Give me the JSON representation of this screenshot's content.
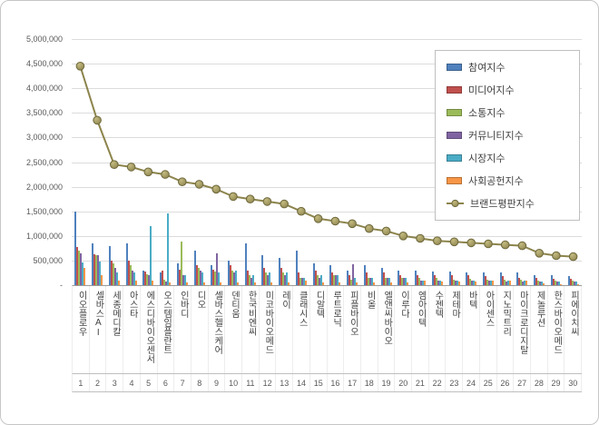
{
  "chart_data": {
    "type": "bar",
    "title": "",
    "xlabel": "",
    "ylabel": "",
    "ylim": [
      0,
      5000000
    ],
    "ytick_step": 500000,
    "ytick_labels": [
      "5,000,000",
      "4,500,000",
      "4,000,000",
      "3,500,000",
      "3,000,000",
      "2,500,000",
      "2,000,000",
      "1,500,000",
      "1,000,000",
      "500,000",
      "-"
    ],
    "zero_tick_label": "-",
    "grid": true,
    "legend_position": "top-right",
    "categories": [
      "이오플로우",
      "셀바스AI",
      "세종메디칼",
      "아스타",
      "에스디바이오센서",
      "오스템임플란트",
      "인바디",
      "디오",
      "셀바스헬스케어",
      "덴티움",
      "한국비엔씨",
      "미코바이오메드",
      "레이",
      "클래시스",
      "디알텍",
      "루트로닉",
      "피플바이오",
      "비올",
      "엘앤씨바이오",
      "이루다",
      "엠아이텍",
      "수젠텍",
      "제테마",
      "바텍",
      "아이센스",
      "지노믹트리",
      "마이크로디지탈",
      "제놀루션",
      "한스바이오메드",
      "피에이치씨"
    ],
    "ranks": [
      "1",
      "2",
      "3",
      "4",
      "5",
      "6",
      "7",
      "8",
      "9",
      "10",
      "11",
      "12",
      "13",
      "14",
      "15",
      "16",
      "17",
      "18",
      "19",
      "20",
      "21",
      "22",
      "23",
      "24",
      "25",
      "26",
      "27",
      "28",
      "29",
      "30"
    ],
    "bar_series": [
      {
        "name": "참여지수",
        "color": "#4F81BD",
        "values": [
          1500000,
          850000,
          800000,
          850000,
          300000,
          250000,
          450000,
          700000,
          400000,
          500000,
          850000,
          600000,
          550000,
          700000,
          450000,
          400000,
          300000,
          400000,
          350000,
          300000,
          300000,
          280000,
          280000,
          250000,
          250000,
          250000,
          250000,
          200000,
          200000,
          180000
        ]
      },
      {
        "name": "미디어지수",
        "color": "#C0504D",
        "values": [
          780000,
          620000,
          500000,
          500000,
          280000,
          300000,
          320000,
          400000,
          320000,
          400000,
          300000,
          350000,
          350000,
          250000,
          300000,
          250000,
          200000,
          250000,
          250000,
          200000,
          200000,
          200000,
          200000,
          200000,
          180000,
          180000,
          150000,
          150000,
          130000,
          130000
        ]
      },
      {
        "name": "소통지수",
        "color": "#9BBB59",
        "values": [
          700000,
          600000,
          450000,
          400000,
          220000,
          120000,
          880000,
          350000,
          280000,
          300000,
          200000,
          250000,
          250000,
          150000,
          200000,
          200000,
          120000,
          150000,
          150000,
          150000,
          150000,
          150000,
          120000,
          130000,
          120000,
          120000,
          120000,
          100000,
          100000,
          100000
        ]
      },
      {
        "name": "커뮤니티지수",
        "color": "#8064A2",
        "values": [
          650000,
          600000,
          350000,
          300000,
          200000,
          80000,
          200000,
          300000,
          650000,
          250000,
          150000,
          200000,
          200000,
          150000,
          150000,
          200000,
          430000,
          150000,
          150000,
          150000,
          100000,
          100000,
          100000,
          100000,
          100000,
          80000,
          80000,
          80000,
          70000,
          70000
        ]
      },
      {
        "name": "시장지수",
        "color": "#4BACC6",
        "values": [
          470000,
          480000,
          250000,
          250000,
          1200000,
          1450000,
          200000,
          250000,
          250000,
          300000,
          200000,
          250000,
          250000,
          150000,
          200000,
          200000,
          150000,
          150000,
          150000,
          150000,
          100000,
          100000,
          100000,
          100000,
          100000,
          100000,
          100000,
          80000,
          80000,
          80000
        ]
      },
      {
        "name": "사회공헌지수",
        "color": "#F79646",
        "values": [
          350000,
          200000,
          100000,
          100000,
          100000,
          50000,
          50000,
          50000,
          50000,
          50000,
          50000,
          50000,
          50000,
          100000,
          50000,
          50000,
          50000,
          50000,
          50000,
          50000,
          100000,
          70000,
          80000,
          80000,
          90000,
          90000,
          100000,
          40000,
          20000,
          20000
        ]
      }
    ],
    "line_series": {
      "name": "브랜드평판지수",
      "color": "#8C844C",
      "marker_fill_light": "#C2BA80",
      "marker_fill_dark": "#948A54",
      "marker_stroke": "#6E683C",
      "values": [
        4450000,
        3350000,
        2450000,
        2400000,
        2300000,
        2250000,
        2100000,
        2050000,
        1950000,
        1800000,
        1750000,
        1700000,
        1650000,
        1500000,
        1350000,
        1300000,
        1250000,
        1150000,
        1100000,
        1000000,
        950000,
        900000,
        880000,
        860000,
        840000,
        820000,
        800000,
        650000,
        600000,
        580000
      ]
    }
  }
}
